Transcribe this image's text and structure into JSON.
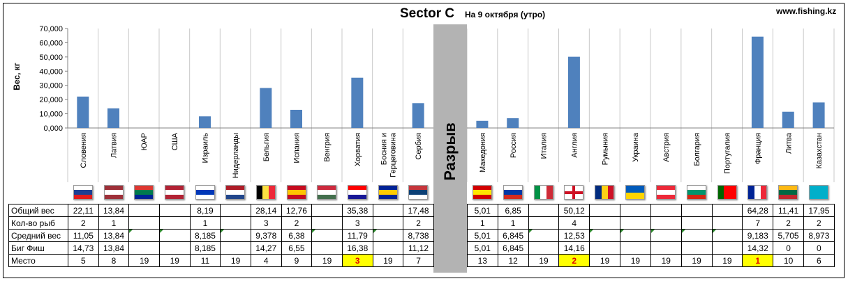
{
  "header": {
    "title": "Sector C",
    "subtitle": "На 9 октября (утро)",
    "site": "www.fishing.kz"
  },
  "gap_label": "Разрыв",
  "chart_data": {
    "type": "bar",
    "title": "Sector C",
    "subtitle": "На 9 октября (утро)",
    "ylabel": "Вес, кг",
    "xlabel": "",
    "ylim": [
      0,
      70
    ],
    "yticks": [
      "0,000",
      "10,000",
      "20,000",
      "30,000",
      "40,000",
      "50,000",
      "60,000",
      "70,000"
    ],
    "grid": "vertical",
    "bar_color": "#4f81bd",
    "categories": [
      "Словения",
      "Латвия",
      "ЮАР",
      "США",
      "Израиль",
      "Нидерланды",
      "Бельгия",
      "Испания",
      "Венгрия",
      "Хорватия",
      "Босния и Герцеговина",
      "Сербия",
      "Македония",
      "Россия",
      "Италия",
      "Англия",
      "Румыния",
      "Украина",
      "Австрия",
      "Болгария",
      "Португалия",
      "Франция",
      "Литва",
      "Казахстан"
    ],
    "values": [
      22.11,
      13.84,
      0,
      0,
      8.19,
      0,
      28.14,
      12.76,
      0,
      35.38,
      0,
      17.48,
      5.01,
      6.85,
      0,
      50.12,
      0,
      0,
      0,
      0,
      0,
      64.28,
      11.41,
      17.95
    ]
  },
  "table": {
    "row_labels": [
      "Общий вес",
      "Кол-во рыб",
      "Средний вес",
      "Биг Фиш",
      "Место"
    ],
    "rows": [
      [
        "22,11",
        "13,84",
        "",
        "",
        "8,19",
        "",
        "28,14",
        "12,76",
        "",
        "35,38",
        "",
        "17,48",
        "5,01",
        "6,85",
        "",
        "50,12",
        "",
        "",
        "",
        "",
        "",
        "64,28",
        "11,41",
        "17,95"
      ],
      [
        "2",
        "1",
        "",
        "",
        "1",
        "",
        "3",
        "2",
        "",
        "3",
        "",
        "2",
        "1",
        "1",
        "",
        "4",
        "",
        "",
        "",
        "",
        "",
        "7",
        "2",
        "2"
      ],
      [
        "11,05",
        "13,84",
        "",
        "",
        "8,185",
        "",
        "9,378",
        "6,38",
        "",
        "11,79",
        "",
        "8,738",
        "5,01",
        "6,845",
        "",
        "12,53",
        "",
        "",
        "",
        "",
        "",
        "9,183",
        "5,705",
        "8,973"
      ],
      [
        "14,73",
        "13,84",
        "",
        "",
        "8,185",
        "",
        "14,27",
        "6,55",
        "",
        "16,38",
        "",
        "11,12",
        "5,01",
        "6,845",
        "",
        "14,16",
        "",
        "",
        "",
        "",
        "",
        "14,32",
        "0",
        "0"
      ],
      [
        "5",
        "8",
        "19",
        "19",
        "11",
        "19",
        "4",
        "9",
        "19",
        "3",
        "19",
        "7",
        "13",
        "12",
        "19",
        "2",
        "19",
        "19",
        "19",
        "19",
        "19",
        "1",
        "10",
        "6"
      ]
    ],
    "highlight_places": [
      "1",
      "2",
      "3"
    ],
    "highlight_color": "#ffff00"
  },
  "flags": [
    {
      "country": "Словения",
      "style": "h",
      "colors": [
        "#ffffff",
        "#1c3f94",
        "#e21b1b"
      ]
    },
    {
      "country": "Латвия",
      "style": "h",
      "colors": [
        "#9e3039",
        "#ffffff",
        "#9e3039"
      ]
    },
    {
      "country": "ЮАР",
      "style": "h",
      "colors": [
        "#de3831",
        "#007a4d",
        "#002395"
      ]
    },
    {
      "country": "США",
      "style": "h",
      "colors": [
        "#b22234",
        "#ffffff",
        "#b22234"
      ]
    },
    {
      "country": "Израиль",
      "style": "h",
      "colors": [
        "#ffffff",
        "#0038b8",
        "#ffffff"
      ]
    },
    {
      "country": "Нидерланды",
      "style": "h",
      "colors": [
        "#ae1c28",
        "#ffffff",
        "#21468b"
      ]
    },
    {
      "country": "Бельгия",
      "style": "v",
      "colors": [
        "#000000",
        "#fae042",
        "#ed2939"
      ]
    },
    {
      "country": "Испания",
      "style": "h",
      "colors": [
        "#c60b1e",
        "#ffc400",
        "#c60b1e"
      ]
    },
    {
      "country": "Венгрия",
      "style": "h",
      "colors": [
        "#cd2a3e",
        "#ffffff",
        "#436f4d"
      ]
    },
    {
      "country": "Хорватия",
      "style": "h",
      "colors": [
        "#ff0000",
        "#ffffff",
        "#171796"
      ]
    },
    {
      "country": "Босния и Герцеговина",
      "style": "h",
      "colors": [
        "#002395",
        "#fecb00",
        "#002395"
      ]
    },
    {
      "country": "Сербия",
      "style": "h",
      "colors": [
        "#c6363c",
        "#0c4076",
        "#ffffff"
      ]
    },
    {
      "country": "Македония",
      "style": "h",
      "colors": [
        "#d20000",
        "#ffe600",
        "#d20000"
      ]
    },
    {
      "country": "Россия",
      "style": "h",
      "colors": [
        "#ffffff",
        "#0039a6",
        "#d52b1e"
      ]
    },
    {
      "country": "Италия",
      "style": "v",
      "colors": [
        "#009246",
        "#ffffff",
        "#ce2b37"
      ]
    },
    {
      "country": "Англия",
      "style": "cross",
      "colors": [
        "#ffffff",
        "#ce1124"
      ]
    },
    {
      "country": "Румыния",
      "style": "v",
      "colors": [
        "#002b7f",
        "#fcd116",
        "#ce1126"
      ]
    },
    {
      "country": "Украина",
      "style": "h2",
      "colors": [
        "#005bbb",
        "#ffd500"
      ]
    },
    {
      "country": "Австрия",
      "style": "h",
      "colors": [
        "#ed2939",
        "#ffffff",
        "#ed2939"
      ]
    },
    {
      "country": "Болгария",
      "style": "h",
      "colors": [
        "#ffffff",
        "#00966e",
        "#d62612"
      ]
    },
    {
      "country": "Португалия",
      "style": "v",
      "colors": [
        "#006600",
        "#ff0000",
        "#ff0000"
      ]
    },
    {
      "country": "Франция",
      "style": "v",
      "colors": [
        "#002395",
        "#ffffff",
        "#ed2939"
      ]
    },
    {
      "country": "Литва",
      "style": "h",
      "colors": [
        "#fdb913",
        "#006a44",
        "#c1272d"
      ]
    },
    {
      "country": "Казахстан",
      "style": "h",
      "colors": [
        "#00afca",
        "#00afca",
        "#00afca"
      ]
    }
  ]
}
